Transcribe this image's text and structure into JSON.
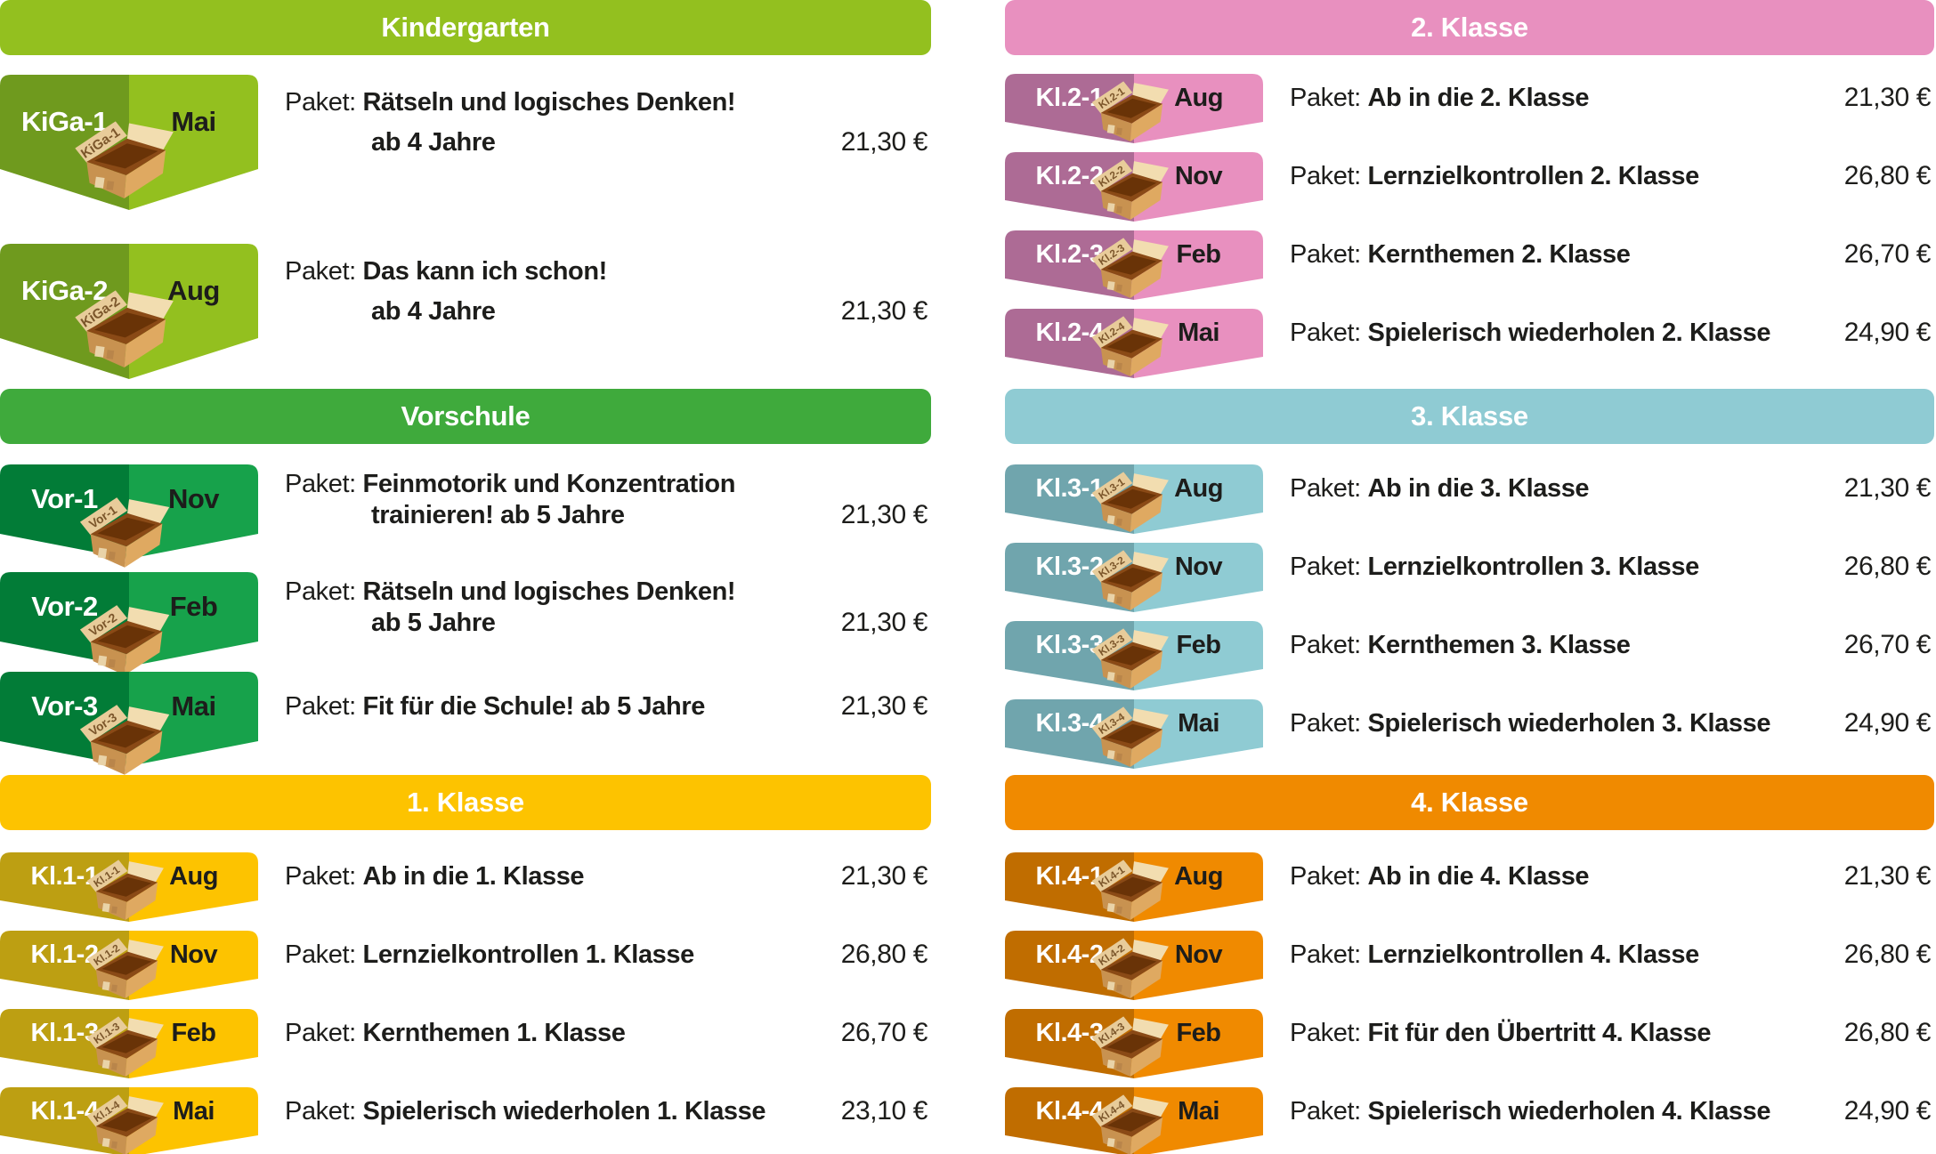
{
  "page": {
    "background": "#ffffff",
    "text_color": "#1d1d1b"
  },
  "box_icon": {
    "name": "open-cardboard-box-icon",
    "colors": {
      "flap_light": "#f2ddb0",
      "flap_label": "#e8cc9a",
      "side_left": "#c89250",
      "side_right": "#dfa961",
      "interior": "#8a4a16",
      "interior_dark": "#693307",
      "label_text": "#7b562b",
      "sticker": "#e9d3a8",
      "sticker_dark": "#b9854a"
    }
  },
  "columns": [
    {
      "sections": [
        {
          "title": "Kindergarten",
          "size": "tall",
          "colors": {
            "header": "#93c01f",
            "badge_dark": "#6f9a1e",
            "badge_light": "#93c01f"
          },
          "rows": [
            {
              "code": "KiGa-1",
              "month": "Mai",
              "prefix": "Paket:",
              "name": "Rätseln und logisches Denken!",
              "subline": "ab 4 Jahre",
              "price": "21,30 €"
            },
            {
              "code": "KiGa-2",
              "month": "Aug",
              "prefix": "Paket:",
              "name": "Das kann ich schon!",
              "subline": "ab 4 Jahre",
              "price": "21,30 €"
            }
          ]
        },
        {
          "title": "Vorschule",
          "size": "mid",
          "colors": {
            "header": "#3faa3c",
            "badge_dark": "#027c37",
            "badge_light": "#17a24b"
          },
          "rows": [
            {
              "code": "Vor-1",
              "month": "Nov",
              "prefix": "Paket:",
              "name": "Feinmotorik und Konzentration",
              "subline": "trainieren! ab 5 Jahre",
              "price": "21,30 €"
            },
            {
              "code": "Vor-2",
              "month": "Feb",
              "prefix": "Paket:",
              "name": "Rätseln und logisches Denken!",
              "subline": "ab 5 Jahre",
              "price": "21,30 €"
            },
            {
              "code": "Vor-3",
              "month": "Mai",
              "prefix": "Paket:",
              "name": "Fit für die Schule! ab 5 Jahre",
              "price": "21,30 €"
            }
          ]
        },
        {
          "title": "1. Klasse",
          "size": "small",
          "colors": {
            "header": "#fdc300",
            "badge_dark": "#bd9f12",
            "badge_light": "#fdc300"
          },
          "rows": [
            {
              "code": "Kl.1-1",
              "month": "Aug",
              "prefix": "Paket:",
              "name": "Ab in die 1. Klasse",
              "price": "21,30 €"
            },
            {
              "code": "Kl.1-2",
              "month": "Nov",
              "prefix": "Paket:",
              "name": "Lernzielkontrollen 1. Klasse",
              "price": "26,80 €"
            },
            {
              "code": "Kl.1-3",
              "month": "Feb",
              "prefix": "Paket:",
              "name": "Kernthemen 1. Klasse",
              "price": "26,70 €"
            },
            {
              "code": "Kl.1-4",
              "month": "Mai",
              "prefix": "Paket:",
              "name": "Spielerisch wiederholen 1. Klasse",
              "price": "23,10 €"
            }
          ]
        }
      ]
    },
    {
      "sections": [
        {
          "title": "2. Klasse",
          "size": "small",
          "colors": {
            "header": "#e890bf",
            "badge_dark": "#ad6b95",
            "badge_light": "#e890bf"
          },
          "rows": [
            {
              "code": "Kl.2-1",
              "month": "Aug",
              "prefix": "Paket:",
              "name": "Ab in die 2. Klasse",
              "price": "21,30 €"
            },
            {
              "code": "Kl.2-2",
              "month": "Nov",
              "prefix": "Paket:",
              "name": "Lernzielkontrollen 2. Klasse",
              "price": "26,80 €"
            },
            {
              "code": "Kl.2-3",
              "month": "Feb",
              "prefix": "Paket:",
              "name": "Kernthemen 2. Klasse",
              "price": "26,70 €"
            },
            {
              "code": "Kl.2-4",
              "month": "Mai",
              "prefix": "Paket:",
              "name": "Spielerisch wiederholen 2. Klasse",
              "price": "24,90 €"
            }
          ]
        },
        {
          "title": "3. Klasse",
          "size": "small",
          "colors": {
            "header": "#8fcbd3",
            "badge_dark": "#70a5ad",
            "badge_light": "#8fcbd3"
          },
          "rows": [
            {
              "code": "Kl.3-1",
              "month": "Aug",
              "prefix": "Paket:",
              "name": "Ab in die 3. Klasse",
              "price": "21,30 €"
            },
            {
              "code": "Kl.3-2",
              "month": "Nov",
              "prefix": "Paket:",
              "name": "Lernzielkontrollen 3. Klasse",
              "price": "26,80 €"
            },
            {
              "code": "Kl.3-3",
              "month": "Feb",
              "prefix": "Paket:",
              "name": "Kernthemen 3. Klasse",
              "price": "26,70 €"
            },
            {
              "code": "Kl.3-4",
              "month": "Mai",
              "prefix": "Paket:",
              "name": "Spielerisch wiederholen 3. Klasse",
              "price": "24,90 €"
            }
          ]
        },
        {
          "title": "4. Klasse",
          "size": "small",
          "colors": {
            "header": "#f08a00",
            "badge_dark": "#c06d00",
            "badge_light": "#f08a00"
          },
          "rows": [
            {
              "code": "Kl.4-1",
              "month": "Aug",
              "prefix": "Paket:",
              "name": "Ab in die 4. Klasse",
              "price": "21,30 €"
            },
            {
              "code": "Kl.4-2",
              "month": "Nov",
              "prefix": "Paket:",
              "name": "Lernzielkontrollen 4. Klasse",
              "price": "26,80 €"
            },
            {
              "code": "Kl.4-3",
              "month": "Feb",
              "prefix": "Paket:",
              "name": "Fit für den Übertritt 4. Klasse",
              "price": "26,80 €"
            },
            {
              "code": "Kl.4-4",
              "month": "Mai",
              "prefix": "Paket:",
              "name": "Spielerisch wiederholen 4. Klasse",
              "price": "24,90 €"
            }
          ]
        }
      ]
    }
  ]
}
